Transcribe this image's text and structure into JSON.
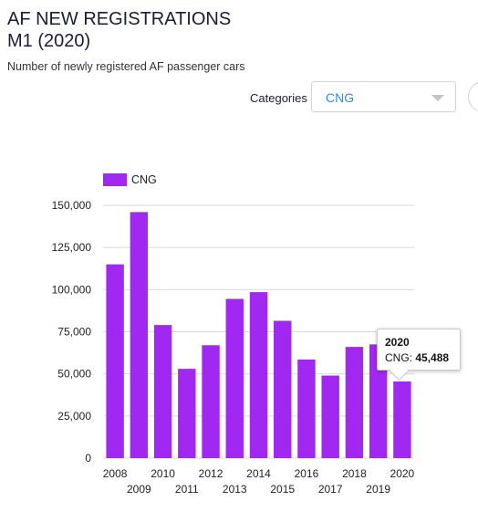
{
  "header": {
    "title_line1": "AF NEW REGISTRATIONS",
    "title_line2": "M1 (2020)",
    "subtitle": "Number of newly registered AF passenger cars"
  },
  "filter": {
    "label": "Categories",
    "selected": "CNG"
  },
  "colors": {
    "bar": "#a128f0",
    "grid": "#d9d9d9",
    "axis_text": "#222222"
  },
  "tooltip": {
    "title": "2020",
    "label": "CNG:",
    "value": "45,488"
  },
  "chart_data": {
    "type": "bar",
    "categories": [
      "2008",
      "2009",
      "2010",
      "2011",
      "2012",
      "2013",
      "2014",
      "2015",
      "2016",
      "2017",
      "2018",
      "2019",
      "2020"
    ],
    "series": [
      {
        "name": "CNG",
        "values": [
          115000,
          146000,
          79000,
          53000,
          67000,
          94500,
          98500,
          81500,
          58500,
          49000,
          66000,
          67500,
          45488
        ]
      }
    ],
    "yticks": [
      "0",
      "25,000",
      "50,000",
      "75,000",
      "100,000",
      "125,000",
      "150,000"
    ],
    "ylim": [
      0,
      150000
    ],
    "legend": "top-left",
    "grid": true,
    "title": "",
    "xlabel": "",
    "ylabel": ""
  }
}
